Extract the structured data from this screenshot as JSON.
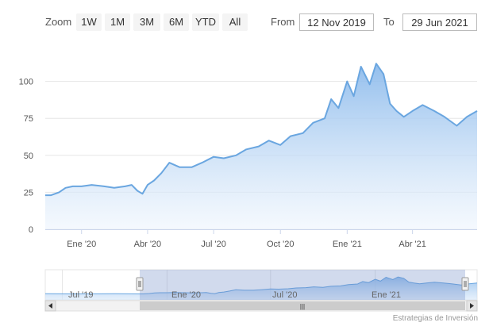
{
  "range_selector": {
    "zoom_label": "Zoom",
    "buttons": [
      "1W",
      "1M",
      "3M",
      "6M",
      "YTD",
      "All"
    ],
    "from_label": "From",
    "to_label": "To",
    "from_value": "12 Nov 2019",
    "to_value": "29 Jun 2021"
  },
  "navigator": {
    "labels": [
      "Jul '19",
      "Ene '20",
      "Jul '20",
      "Ene '21"
    ],
    "scroll_grip": "|||"
  },
  "credits": "Estrategias de Inversión",
  "colors": {
    "line": "#6aa6e0",
    "area_top": "#8dbbec",
    "area_bottom": "#eef5fd",
    "navigator_mask": "rgba(102,133,194,0.3)"
  },
  "chart_data": {
    "type": "area",
    "title": "",
    "xlabel": "",
    "ylabel": "",
    "ylim": [
      0,
      125
    ],
    "yticks": [
      "0",
      "25",
      "50",
      "75",
      "100"
    ],
    "xticks": [
      "Ene '20",
      "Abr '20",
      "Jul '20",
      "Oct '20",
      "Ene '21",
      "Abr '21"
    ],
    "x_range": [
      "2019-11-12",
      "2021-06-29"
    ],
    "series": [
      {
        "name": "",
        "x": [
          "2019-11-12",
          "2019-11-20",
          "2019-12-01",
          "2019-12-10",
          "2019-12-20",
          "2020-01-01",
          "2020-01-15",
          "2020-02-01",
          "2020-02-15",
          "2020-03-01",
          "2020-03-10",
          "2020-03-18",
          "2020-03-25",
          "2020-04-01",
          "2020-04-10",
          "2020-04-20",
          "2020-05-01",
          "2020-05-15",
          "2020-06-01",
          "2020-06-15",
          "2020-07-01",
          "2020-07-15",
          "2020-08-01",
          "2020-08-15",
          "2020-09-01",
          "2020-09-15",
          "2020-10-01",
          "2020-10-15",
          "2020-11-01",
          "2020-11-15",
          "2020-12-01",
          "2020-12-10",
          "2020-12-20",
          "2021-01-01",
          "2021-01-10",
          "2021-01-20",
          "2021-02-01",
          "2021-02-10",
          "2021-02-20",
          "2021-03-01",
          "2021-03-10",
          "2021-03-20",
          "2021-04-01",
          "2021-04-15",
          "2021-05-01",
          "2021-05-15",
          "2021-06-01",
          "2021-06-15",
          "2021-06-29"
        ],
        "y": [
          23,
          23,
          25,
          28,
          29,
          29,
          30,
          29,
          28,
          29,
          30,
          26,
          24,
          30,
          33,
          38,
          45,
          42,
          42,
          45,
          49,
          48,
          50,
          54,
          56,
          60,
          57,
          63,
          65,
          72,
          75,
          88,
          82,
          100,
          90,
          110,
          98,
          112,
          105,
          85,
          80,
          76,
          80,
          84,
          80,
          76,
          70,
          76,
          80
        ]
      }
    ]
  }
}
